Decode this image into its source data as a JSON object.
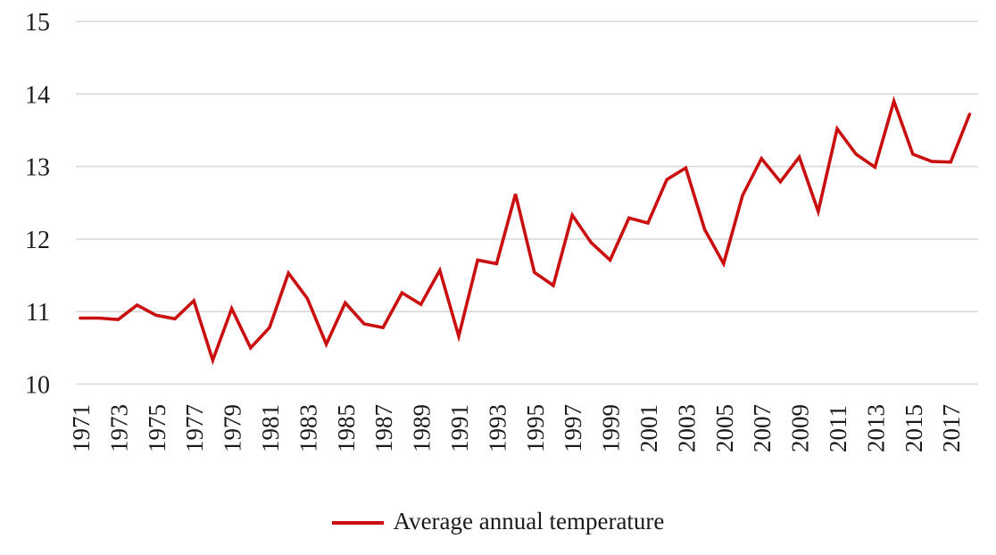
{
  "chart_data": {
    "type": "line",
    "title": "",
    "xlabel": "",
    "ylabel": "",
    "ylim": [
      10,
      15
    ],
    "yticks": [
      15,
      14,
      13,
      12,
      11,
      10
    ],
    "grid": "horizontal-only",
    "legend_position": "bottom-center",
    "x": [
      1971,
      1972,
      1973,
      1974,
      1975,
      1976,
      1977,
      1978,
      1979,
      1980,
      1981,
      1982,
      1983,
      1984,
      1985,
      1986,
      1987,
      1988,
      1989,
      1990,
      1991,
      1992,
      1993,
      1994,
      1995,
      1996,
      1997,
      1998,
      1999,
      2000,
      2001,
      2002,
      2003,
      2004,
      2005,
      2006,
      2007,
      2008,
      2009,
      2010,
      2011,
      2012,
      2013,
      2014,
      2015,
      2016,
      2017,
      2018
    ],
    "xtick_labels": [
      "1971",
      "1973",
      "1975",
      "1977",
      "1979",
      "1981",
      "1983",
      "1985",
      "1987",
      "1989",
      "1991",
      "1993",
      "1995",
      "1997",
      "1999",
      "2001",
      "2003",
      "2005",
      "2007",
      "2009",
      "2011",
      "2013",
      "2015",
      "2017"
    ],
    "series": [
      {
        "name": "Average annual temperature",
        "color": "#C90F0F",
        "values": [
          10.91,
          10.91,
          10.89,
          11.09,
          10.95,
          10.9,
          11.15,
          10.33,
          11.04,
          10.5,
          10.78,
          11.53,
          11.18,
          10.55,
          11.12,
          10.83,
          10.78,
          11.26,
          11.1,
          11.57,
          10.66,
          11.71,
          11.66,
          12.62,
          11.54,
          11.36,
          12.33,
          11.95,
          11.71,
          12.29,
          12.22,
          12.82,
          12.98,
          12.13,
          11.66,
          12.6,
          13.11,
          12.79,
          13.13,
          12.38,
          13.52,
          13.17,
          12.99,
          13.9,
          13.17,
          13.07,
          13.06,
          13.72
        ]
      }
    ]
  },
  "style": {
    "background": "#FFFFFF",
    "grid_color": "#D9D9D9",
    "text_color": "#1B1B1B",
    "line_color": "#C90F0F"
  }
}
